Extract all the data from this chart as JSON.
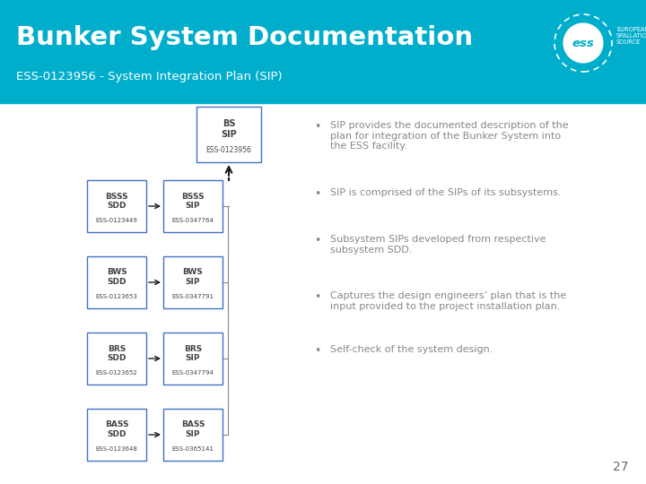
{
  "title": "Bunker System Documentation",
  "subtitle": "ESS-0123956 - System Integration Plan (SIP)",
  "header_bg": "#00AECC",
  "slide_bg": "#FFFFFF",
  "title_color": "#FFFFFF",
  "box_border_color": "#4472C4",
  "box_fill_color": "#FFFFFF",
  "arrow_color": "#1a1a1a",
  "connect_line_color": "#888888",
  "box_text_color": "#444444",
  "bullet_text_color": "#888888",
  "page_number": "27",
  "top_box": {
    "label": "BS\nSIP",
    "doc": "ESS-0123956"
  },
  "subsystems": [
    {
      "sdd_label": "BSSS\nSDD",
      "sdd_doc": "ESS-0123449",
      "sip_label": "BSSS\nSIP",
      "sip_doc": "ESS-0347764"
    },
    {
      "sdd_label": "BWS\nSDD",
      "sdd_doc": "ESS-0123653",
      "sip_label": "BWS\nSIP",
      "sip_doc": "ESS-0347791"
    },
    {
      "sdd_label": "BRS\nSDD",
      "sdd_doc": "ESS-0123652",
      "sip_label": "BRS\nSIP",
      "sip_doc": "ESS-0347794"
    },
    {
      "sdd_label": "BASS\nSDD",
      "sdd_doc": "ESS-0123648",
      "sip_label": "BASS\nSIP",
      "sip_doc": "ESS-0365141"
    }
  ],
  "bullets": [
    "SIP provides the documented description of the\nplan for integration of the Bunker System into\nthe ESS facility.",
    "SIP is comprised of the SIPs of its subsystems.",
    "Subsystem SIPs developed from respective\nsubsystem SDD.",
    "Captures the design engineers’ plan that is the\ninput provided to the project installation plan.",
    "Self-check of the system design."
  ]
}
